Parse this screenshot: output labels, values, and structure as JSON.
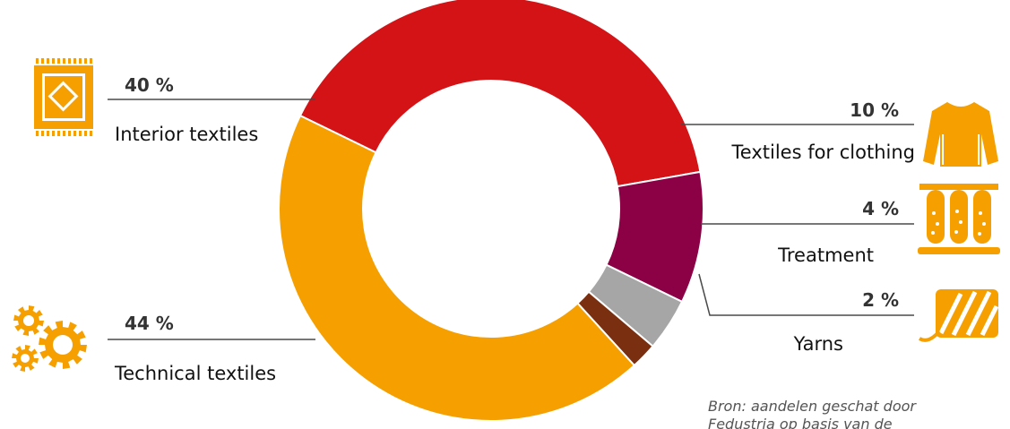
{
  "chart_data": {
    "type": "pie",
    "variant": "donut",
    "slices": [
      {
        "label": "Interior textiles",
        "value": 40,
        "value_label": "40 %",
        "color": "#d41317",
        "icon": "carpet-icon"
      },
      {
        "label": "Textiles for clothing",
        "value": 10,
        "value_label": "10 %",
        "color": "#8c0046",
        "icon": "sweater-icon"
      },
      {
        "label": "Treatment",
        "value": 4,
        "value_label": "4 %",
        "color": "#a6a6a6",
        "icon": "test-tubes-icon"
      },
      {
        "label": "Yarns",
        "value": 2,
        "value_label": "2 %",
        "color": "#7a3010",
        "icon": "yarn-ball-icon"
      },
      {
        "label": "Technical textiles",
        "value": 44,
        "value_label": "44 %",
        "color": "#f5a000",
        "icon": "gears-icon"
      }
    ],
    "source_line1": "Bron: aandelen geschat door",
    "source_line2": "Fedustria op basis van de"
  }
}
